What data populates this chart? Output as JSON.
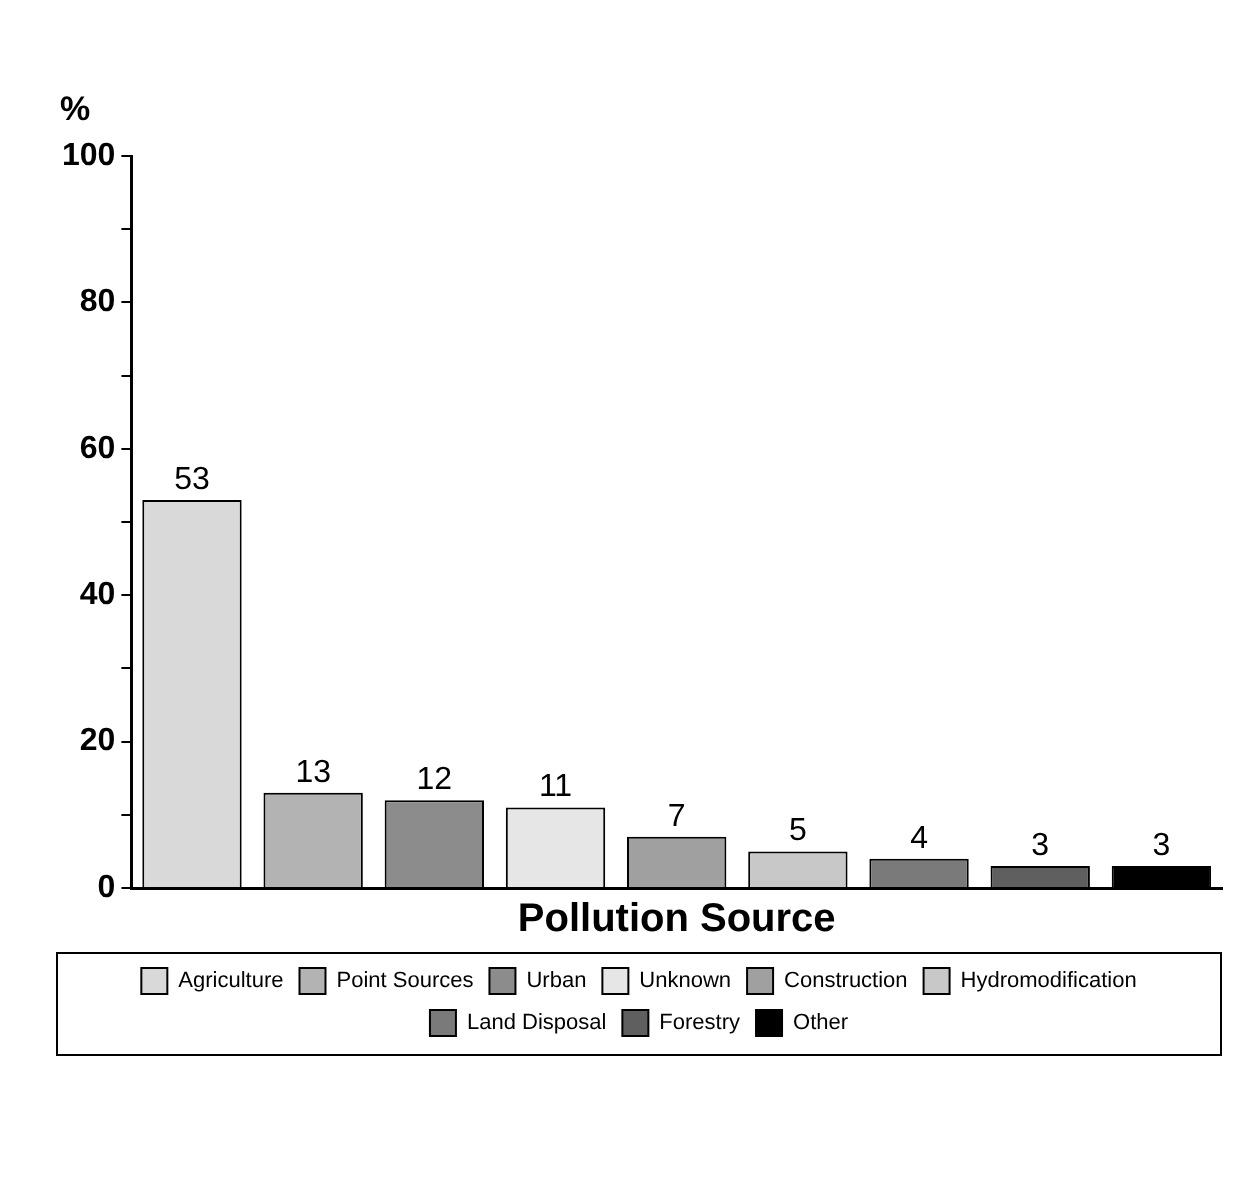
{
  "chart_data": {
    "type": "bar",
    "xlabel": "Pollution Source",
    "ylabel": "%",
    "categories": [
      null,
      null,
      null,
      null,
      null,
      null,
      null,
      null,
      null
    ],
    "series": [
      {
        "name": "Agriculture",
        "color": "#d9d9d9",
        "values": [
          53,
          null,
          null,
          null,
          null,
          null,
          null,
          null,
          null
        ]
      },
      {
        "name": "Point Sources",
        "color": "#b3b3b3",
        "values": [
          null,
          13,
          null,
          null,
          null,
          null,
          null,
          null,
          null
        ]
      },
      {
        "name": "Urban",
        "color": "#8c8c8c",
        "values": [
          null,
          null,
          12,
          null,
          null,
          null,
          null,
          null,
          null
        ]
      },
      {
        "name": "Unknown",
        "color": "#e6e6e6",
        "values": [
          null,
          null,
          null,
          11,
          null,
          null,
          null,
          null,
          null
        ]
      },
      {
        "name": "Construction",
        "color": "#a0a0a0",
        "values": [
          null,
          null,
          null,
          null,
          7,
          null,
          null,
          null,
          null
        ]
      },
      {
        "name": "Hydromodification",
        "color": "#c8c8c8",
        "values": [
          null,
          null,
          null,
          null,
          null,
          5,
          null,
          null,
          null
        ]
      },
      {
        "name": "Land Disposal",
        "color": "#7a7a7a",
        "values": [
          null,
          null,
          null,
          null,
          null,
          null,
          4,
          null,
          null
        ]
      },
      {
        "name": "Forestry",
        "color": "#5f5f5f",
        "values": [
          null,
          null,
          null,
          null,
          null,
          null,
          null,
          3,
          null
        ]
      },
      {
        "name": "Other",
        "color": "#000000",
        "values": [
          null,
          null,
          null,
          null,
          null,
          null,
          null,
          null,
          3
        ]
      }
    ],
    "ylim": [
      0,
      100
    ],
    "yticks": [
      0,
      {
        "value": 10,
        "label": null
      },
      20,
      {
        "value": 30,
        "label": null
      },
      40,
      {
        "value": 50,
        "label": null
      },
      60,
      {
        "value": 70,
        "label": null
      },
      80,
      {
        "value": 90,
        "label": null
      },
      100
    ],
    "tick_labels": "y",
    "data_labels": true,
    "legend": "bottom",
    "grid": false
  }
}
